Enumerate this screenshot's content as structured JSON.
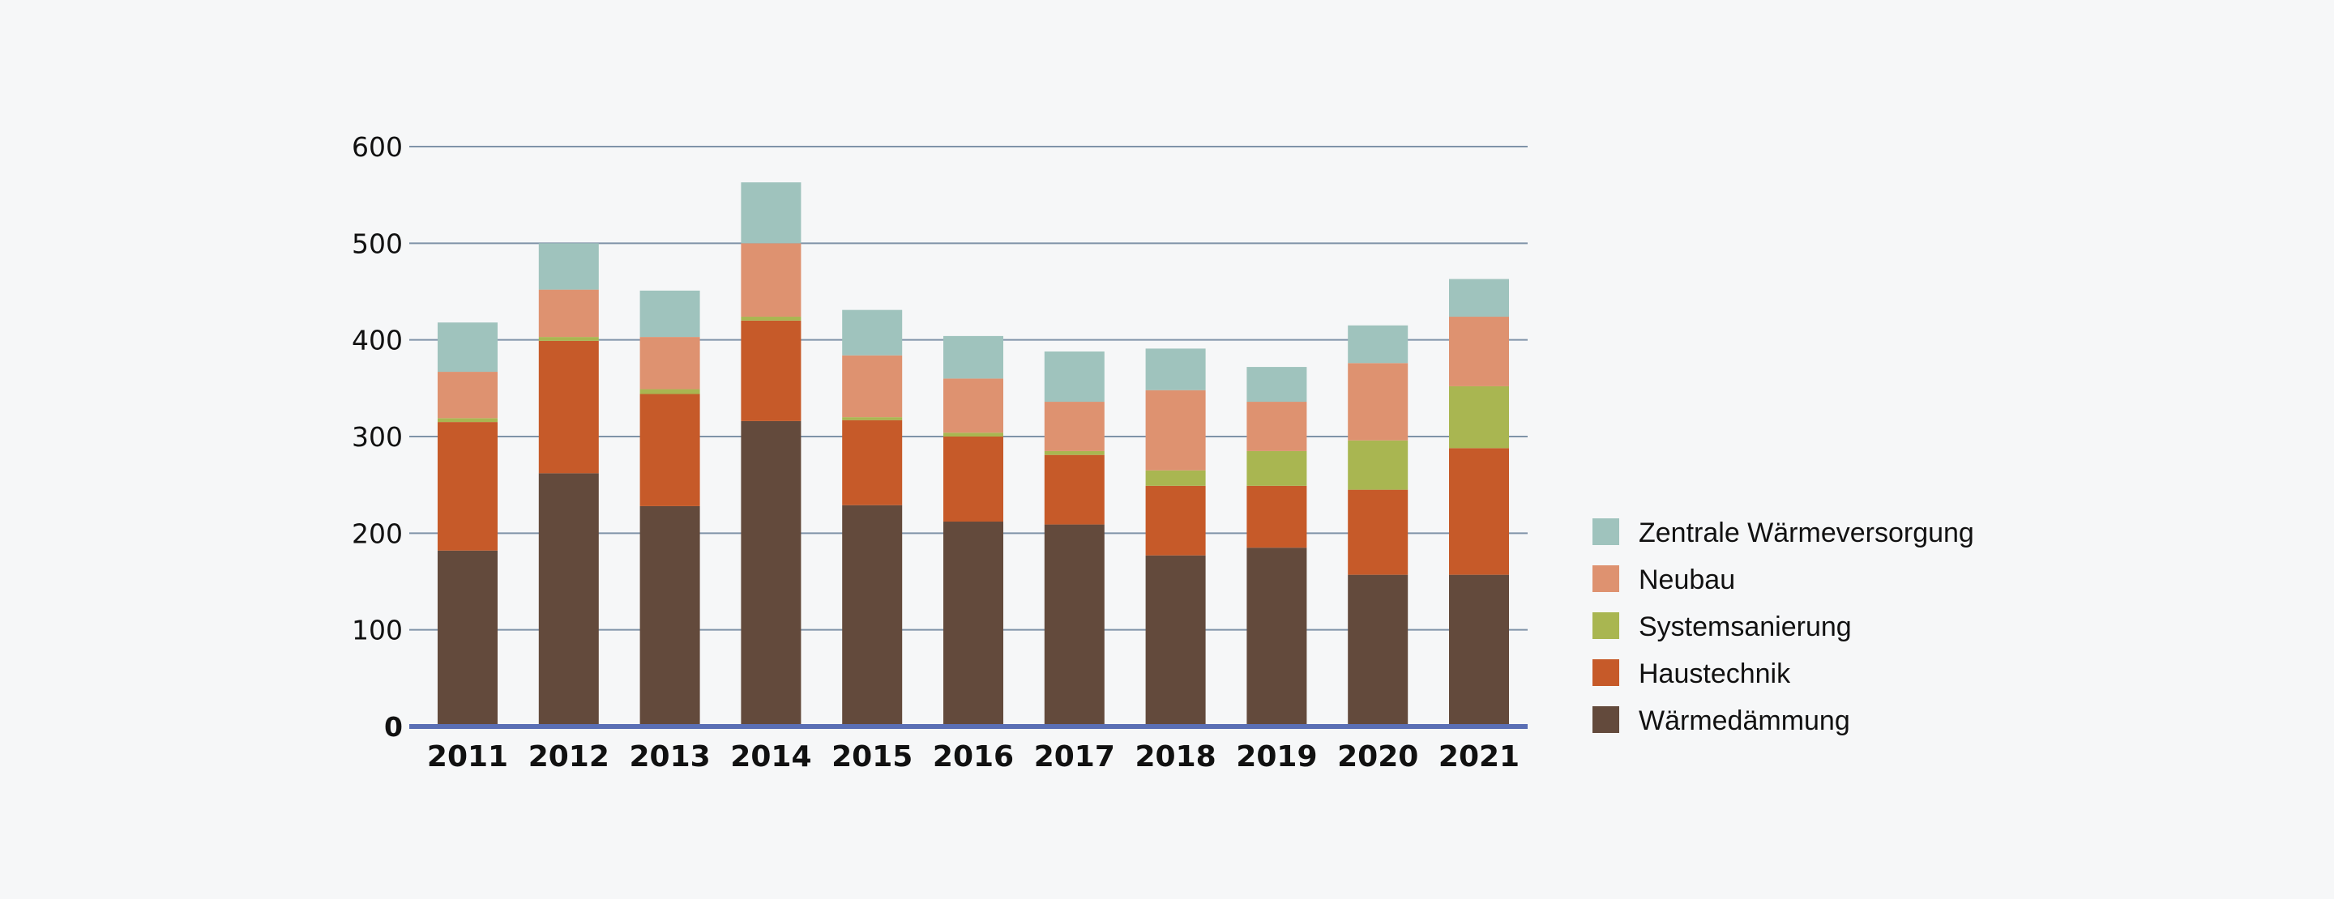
{
  "chart_data": {
    "type": "bar",
    "stacked": true,
    "title": "",
    "xlabel": "",
    "ylabel": "",
    "ylim": [
      0,
      600
    ],
    "yticks": [
      0,
      100,
      200,
      300,
      400,
      500,
      600
    ],
    "grid": true,
    "legend_position": "right",
    "categories": [
      "2011",
      "2012",
      "2013",
      "2014",
      "2015",
      "2016",
      "2017",
      "2018",
      "2019",
      "2020",
      "2021"
    ],
    "series": [
      {
        "name": "Wärmedämmung",
        "color": "#634a3c",
        "values": [
          182,
          262,
          228,
          316,
          229,
          212,
          209,
          177,
          185,
          157,
          157
        ]
      },
      {
        "name": "Haustechnik",
        "color": "#c65a29",
        "values": [
          133,
          137,
          116,
          104,
          88,
          88,
          72,
          72,
          64,
          88,
          131
        ]
      },
      {
        "name": "Systemsanierung",
        "color": "#a9b651",
        "values": [
          4,
          4,
          5,
          4,
          3,
          4,
          4,
          16,
          36,
          51,
          64
        ]
      },
      {
        "name": "Neubau",
        "color": "#de9270",
        "values": [
          48,
          49,
          54,
          76,
          64,
          56,
          51,
          83,
          51,
          80,
          72
        ]
      },
      {
        "name": "Zentrale Wärmeversorgung",
        "color": "#9fc3bd",
        "values": [
          51,
          48,
          48,
          63,
          47,
          44,
          52,
          43,
          36,
          39,
          39
        ]
      }
    ],
    "legend_order": [
      "Zentrale Wärmeversorgung",
      "Neubau",
      "Systemsanierung",
      "Haustechnik",
      "Wärmedämmung"
    ]
  },
  "colors": {
    "background": "#f6f7f8",
    "gridline": "#7f93a8",
    "baseline": "#5a6fb5",
    "text": "#111111"
  }
}
